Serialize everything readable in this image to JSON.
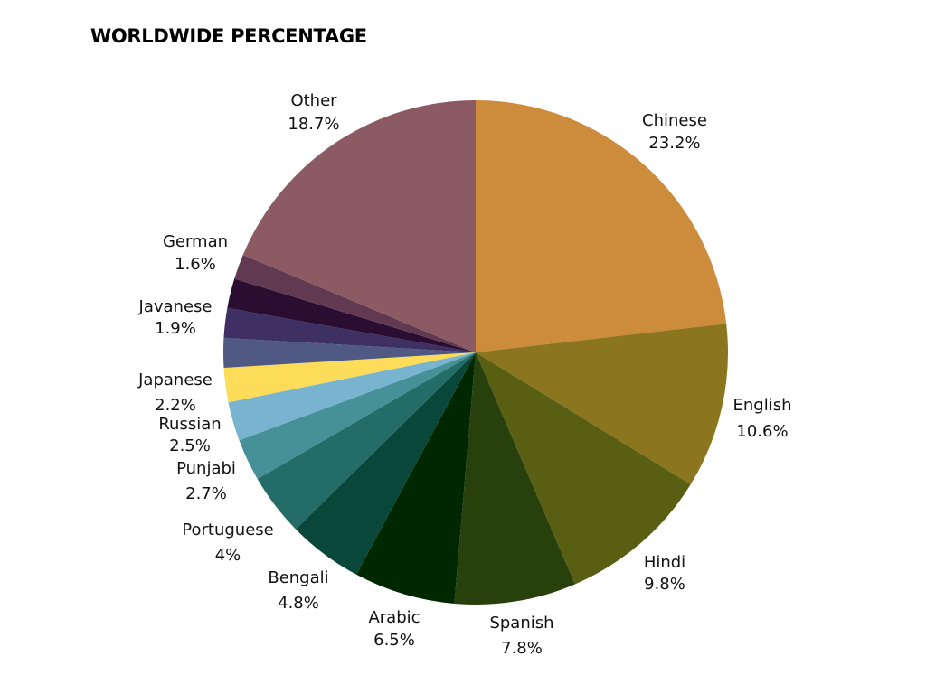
{
  "chart_data": {
    "type": "pie",
    "title": "WORLDWIDE PERCENTAGE",
    "legend": "none",
    "slices": [
      {
        "name": "Chinese",
        "value": 23.2,
        "value_label": "23.2%",
        "color": "#cd8b3c"
      },
      {
        "name": "English",
        "value": 10.6,
        "value_label": "10.6%",
        "color": "#8c751f"
      },
      {
        "name": "Hindi",
        "value": 9.8,
        "value_label": "9.8%",
        "color": "#585e12"
      },
      {
        "name": "Spanish",
        "value": 7.8,
        "value_label": "7.8%",
        "color": "#28400b"
      },
      {
        "name": "Arabic",
        "value": 6.5,
        "value_label": "6.5%",
        "color": "#002800"
      },
      {
        "name": "Bengali",
        "value": 4.8,
        "value_label": "4.8%",
        "color": "#08473a"
      },
      {
        "name": "Portuguese",
        "value": 4.0,
        "value_label": "4%",
        "color": "#236c68"
      },
      {
        "name": "Punjabi",
        "value": 2.7,
        "value_label": "2.7%",
        "color": "#459197"
      },
      {
        "name": "Russian",
        "value": 2.5,
        "value_label": "2.5%",
        "color": "#78b3d0"
      },
      {
        "name": "Japanese",
        "value": 2.2,
        "value_label": "2.2%",
        "color": "#fddc5a"
      },
      {
        "name": "Javanese",
        "value": 1.9,
        "value_label": "1.9%",
        "color": "#505884"
      },
      {
        "name": "",
        "value": 1.9,
        "value_label": "",
        "color": "#3f3063"
      },
      {
        "name": "",
        "value": 1.9,
        "value_label": "",
        "color": "#2b0d32"
      },
      {
        "name": "German",
        "value": 1.6,
        "value_label": "1.6%",
        "color": "#613a51"
      },
      {
        "name": "Other",
        "value": 18.7,
        "value_label": "18.7%",
        "color": "#8c5a63"
      }
    ]
  }
}
